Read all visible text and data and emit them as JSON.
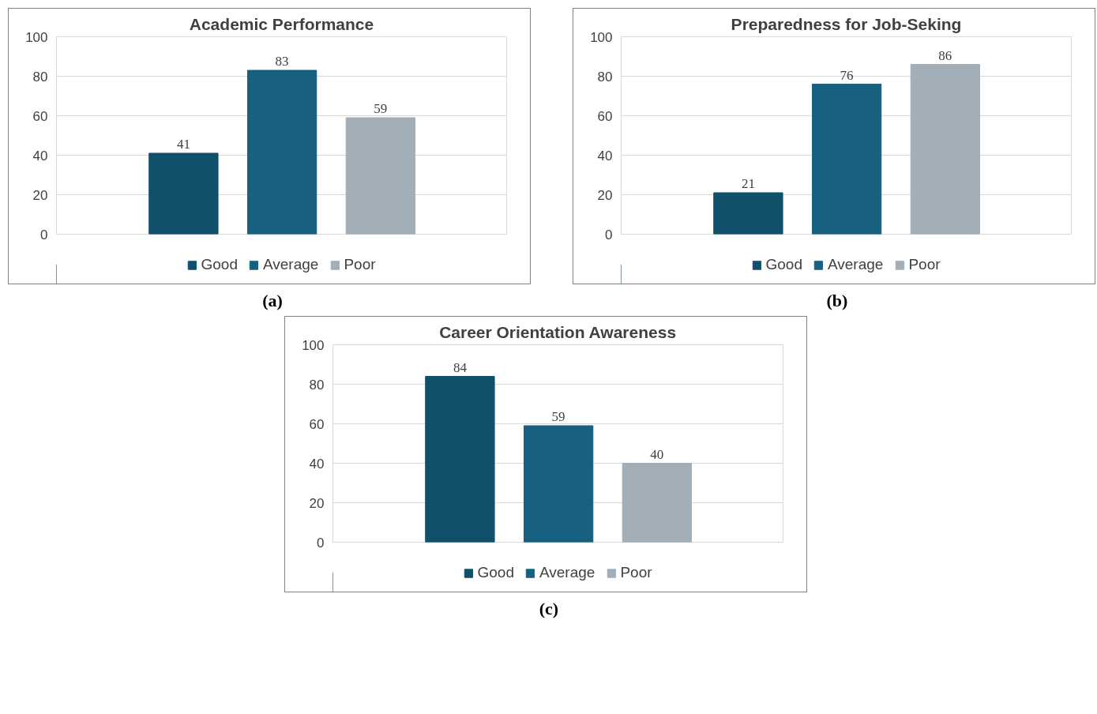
{
  "chart_data": [
    {
      "type": "bar",
      "title": "Academic Performance",
      "categories": [
        null
      ],
      "series": [
        {
          "name": "Good",
          "color": "#114f6b",
          "values": [
            41
          ]
        },
        {
          "name": "Average",
          "color": "#17607f",
          "values": [
            83
          ]
        },
        {
          "name": "Poor",
          "color": "#a2aeb8",
          "values": [
            59
          ]
        }
      ],
      "ylim": [
        0,
        100
      ],
      "yticks": [
        0,
        20,
        40,
        60,
        80,
        100
      ],
      "grid": "y",
      "legend": "bottom",
      "data_labels": true,
      "annotations": [
        "(a)"
      ]
    },
    {
      "type": "bar",
      "title": "Preparedness for Job-Seking",
      "categories": [
        null
      ],
      "series": [
        {
          "name": "Good",
          "color": "#114f6b",
          "values": [
            21
          ]
        },
        {
          "name": "Average",
          "color": "#17607f",
          "values": [
            76
          ]
        },
        {
          "name": "Poor",
          "color": "#a2aeb8",
          "values": [
            86
          ]
        }
      ],
      "ylim": [
        0,
        100
      ],
      "yticks": [
        0,
        20,
        40,
        60,
        80,
        100
      ],
      "grid": "y",
      "legend": "bottom",
      "data_labels": true,
      "annotations": [
        "(b)"
      ]
    },
    {
      "type": "bar",
      "title": "Career Orientation Awareness",
      "categories": [
        null
      ],
      "series": [
        {
          "name": "Good",
          "color": "#114f6b",
          "values": [
            84
          ]
        },
        {
          "name": "Average",
          "color": "#17607f",
          "values": [
            59
          ]
        },
        {
          "name": "Poor",
          "color": "#a2aeb8",
          "values": [
            40
          ]
        }
      ],
      "ylim": [
        0,
        100
      ],
      "yticks": [
        0,
        20,
        40,
        60,
        80,
        100
      ],
      "grid": "y",
      "legend": "bottom",
      "data_labels": true,
      "annotations": [
        "(c)"
      ]
    }
  ]
}
